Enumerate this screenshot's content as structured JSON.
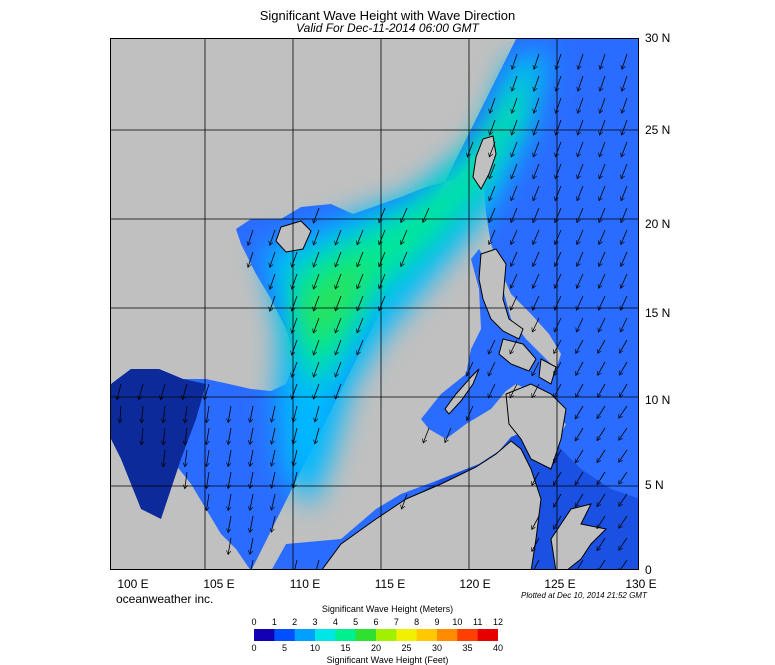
{
  "title": "Significant Wave Height with Wave Direction",
  "subtitle": "Valid For Dec-11-2014 06:00 GMT",
  "brand": "oceanweather inc.",
  "plotted": "Plotted at Dec 10, 2014 21:52 GMT",
  "lon_labels": [
    "100 E",
    "105 E",
    "110 E",
    "115 E",
    "120 E",
    "125 E",
    "130 E"
  ],
  "lat_labels": [
    "30 N",
    "25 N",
    "20 N",
    "15 N",
    "10 N",
    "5 N",
    "0"
  ],
  "colorbar": {
    "meters_title": "Significant Wave Height (Meters)",
    "feet_title": "Significant Wave Height (Feet)",
    "meters_ticks": [
      "0",
      "1",
      "2",
      "3",
      "4",
      "5",
      "6",
      "7",
      "8",
      "9",
      "10",
      "11",
      "12"
    ],
    "feet_ticks": [
      "0",
      "5",
      "10",
      "15",
      "20",
      "25",
      "30",
      "35",
      "40"
    ],
    "colors": [
      "#1400b4",
      "#0050ff",
      "#00a0ff",
      "#00e6e6",
      "#00f090",
      "#30e030",
      "#a0f000",
      "#f0f000",
      "#ffc800",
      "#ff8c00",
      "#ff4000",
      "#e60000"
    ]
  },
  "colors": {
    "land": "#c0c0c0",
    "sea_dark": "#0a28a0",
    "sea_blue": "#2060ff",
    "sea_cyan": "#00c8ff",
    "sea_green": "#00e890"
  }
}
